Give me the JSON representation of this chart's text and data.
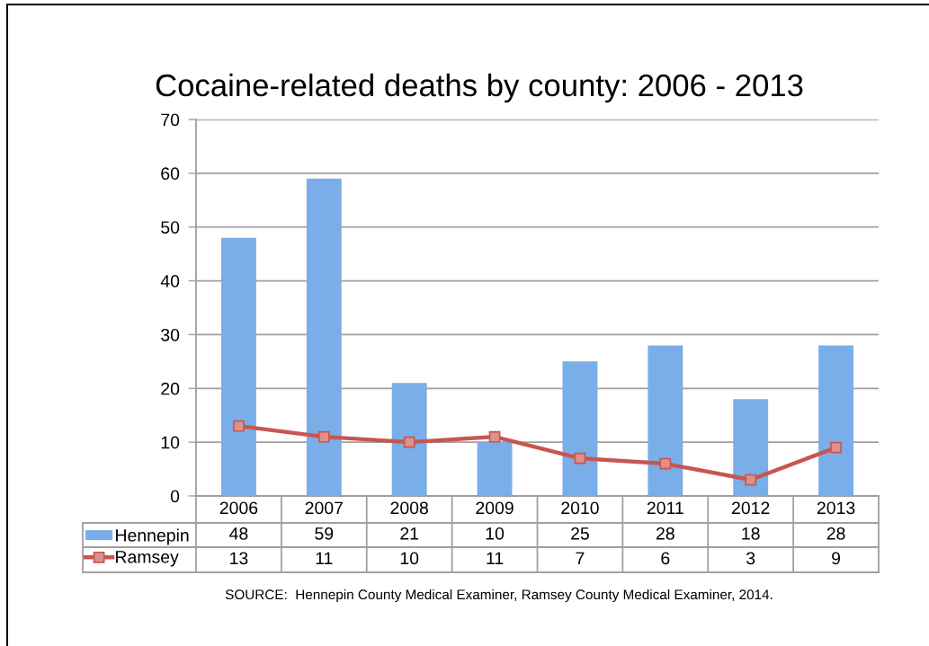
{
  "chart_data": {
    "type": "bar",
    "title": "Cocaine-related deaths by county: 2006 - 2013",
    "categories": [
      "2006",
      "2007",
      "2008",
      "2009",
      "2010",
      "2011",
      "2012",
      "2013"
    ],
    "series": [
      {
        "name": "Hennepin",
        "color": "#7aaee8",
        "values": [
          48,
          59,
          21,
          10,
          25,
          28,
          18,
          28
        ]
      },
      {
        "name": "Ramsey",
        "type": "line",
        "color": "#c85650",
        "values": [
          13,
          11,
          10,
          11,
          7,
          6,
          3,
          9
        ]
      }
    ],
    "ylim": [
      0,
      70
    ],
    "yticks": [
      0,
      10,
      20,
      30,
      40,
      50,
      60,
      70
    ],
    "grid": "y",
    "legend": "bottom",
    "marker": "square",
    "data_labels": true,
    "annotations": [
      "SOURCE:  Hennepin County Medical Examiner, Ramsey County Medical Examiner, 2014."
    ]
  }
}
